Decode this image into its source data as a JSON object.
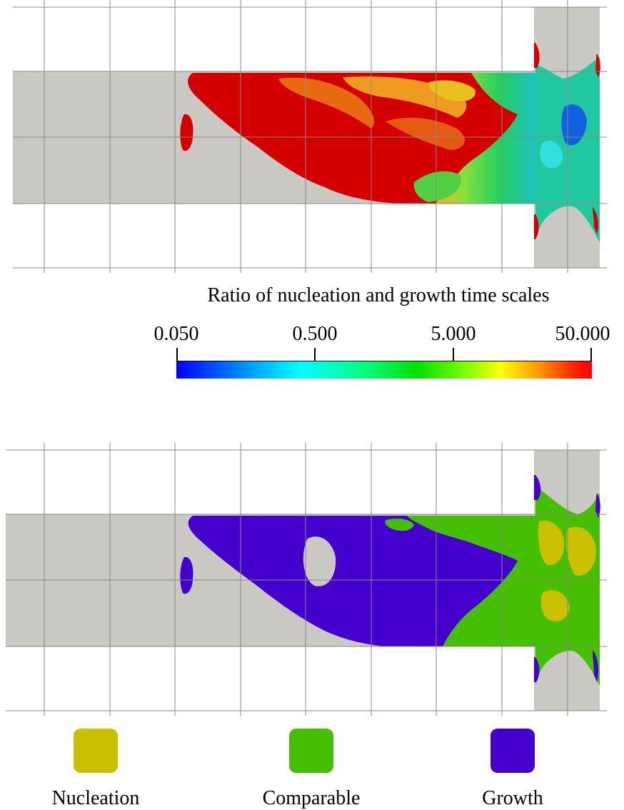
{
  "colorbar": {
    "title": "Ratio of nucleation and growth time scales",
    "ticks": [
      "0.050",
      "0.500",
      "5.000",
      "50.000"
    ],
    "colors": [
      "#0000ff",
      "#00ffff",
      "#00ff00",
      "#ffff00",
      "#ff0000"
    ]
  },
  "legend": {
    "items": [
      {
        "label": "Nucleation",
        "color": "#c8c000"
      },
      {
        "label": "Comparable",
        "color": "#44c000"
      },
      {
        "label": "Growth",
        "color": "#4400cc"
      }
    ]
  },
  "domain_colors": {
    "background": "#c9c8c2",
    "grid": "#888888"
  }
}
